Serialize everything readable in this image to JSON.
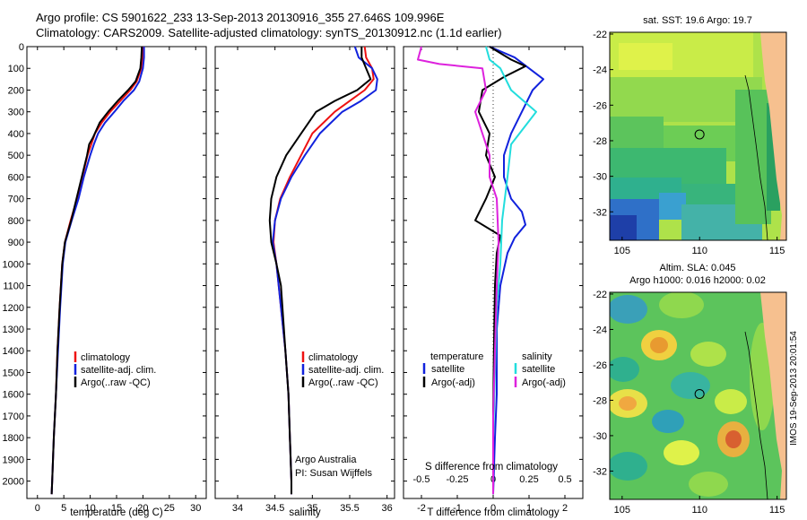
{
  "header": {
    "title_line1": "Argo profile: CS 5901622_233 13-Sep-2013 20130916_355 27.646S 109.996E",
    "title_line2": "Climatology: CARS2009. Satellite-adjusted climatology: synTS_20130912.nc (1.1d earlier)"
  },
  "colors": {
    "climatology": "#ee1111",
    "satellite": "#1122dd",
    "argo": "#000000",
    "satellite_cyan": "#22dddd",
    "argo_magenta": "#dd22dd",
    "land": "#f6c08f"
  },
  "chart_data": [
    {
      "id": "temperature",
      "type": "line",
      "xlabel": "temperature (deg C)",
      "ylabel": "",
      "xlim": [
        -2,
        32
      ],
      "ylim": [
        2080,
        0
      ],
      "xticks": [
        0,
        5,
        10,
        15,
        20,
        25,
        30
      ],
      "yticks": [
        0,
        100,
        200,
        300,
        400,
        500,
        600,
        700,
        800,
        900,
        1000,
        1100,
        1200,
        1300,
        1400,
        1500,
        1600,
        1700,
        1800,
        1900,
        2000
      ],
      "legend": [
        "climatology",
        "satellite-adj. clim.",
        "Argo(..raw -QC)"
      ],
      "series": [
        {
          "name": "climatology",
          "color_key": "climatology",
          "points": [
            [
              20,
              0
            ],
            [
              19.9,
              50
            ],
            [
              19.7,
              100
            ],
            [
              18.8,
              160
            ],
            [
              17.6,
              200
            ],
            [
              15.7,
              250
            ],
            [
              13.8,
              300
            ],
            [
              12.2,
              350
            ],
            [
              10.9,
              400
            ],
            [
              10.2,
              450
            ],
            [
              9.5,
              500
            ],
            [
              8.5,
              600
            ],
            [
              7.5,
              700
            ],
            [
              6.3,
              800
            ],
            [
              5.2,
              900
            ],
            [
              4.7,
              1000
            ],
            [
              4.2,
              1200
            ],
            [
              3.8,
              1400
            ],
            [
              3.5,
              1600
            ],
            [
              3.1,
              1800
            ],
            [
              2.8,
              2000
            ],
            [
              2.7,
              2060
            ]
          ]
        },
        {
          "name": "satellite-adj. clim.",
          "color_key": "satellite",
          "points": [
            [
              20.2,
              0
            ],
            [
              20.2,
              50
            ],
            [
              20,
              100
            ],
            [
              19.3,
              160
            ],
            [
              18.3,
              200
            ],
            [
              16.3,
              250
            ],
            [
              14.6,
              300
            ],
            [
              12.8,
              350
            ],
            [
              11.5,
              400
            ],
            [
              10.7,
              450
            ],
            [
              10,
              500
            ],
            [
              8.8,
              600
            ],
            [
              7.8,
              700
            ],
            [
              6.5,
              800
            ],
            [
              5.3,
              900
            ],
            [
              4.8,
              1000
            ],
            [
              4.3,
              1200
            ],
            [
              3.9,
              1400
            ],
            [
              3.5,
              1600
            ],
            [
              3.1,
              1800
            ],
            [
              2.8,
              2000
            ],
            [
              2.7,
              2060
            ]
          ]
        },
        {
          "name": "Argo(..raw -QC)",
          "color_key": "argo",
          "points": [
            [
              19.8,
              0
            ],
            [
              19.7,
              50
            ],
            [
              19.5,
              100
            ],
            [
              18.6,
              160
            ],
            [
              17.2,
              200
            ],
            [
              15.2,
              250
            ],
            [
              13.4,
              300
            ],
            [
              11.8,
              350
            ],
            [
              10.5,
              420
            ],
            [
              9.8,
              450
            ],
            [
              9.4,
              500
            ],
            [
              8.4,
              600
            ],
            [
              7.4,
              700
            ],
            [
              6.4,
              800
            ],
            [
              5.2,
              900
            ],
            [
              4.7,
              1000
            ],
            [
              4.2,
              1200
            ],
            [
              3.8,
              1400
            ],
            [
              3.5,
              1600
            ],
            [
              3.1,
              1800
            ],
            [
              2.8,
              2000
            ],
            [
              2.7,
              2060
            ]
          ]
        }
      ]
    },
    {
      "id": "salinity",
      "type": "line",
      "xlabel": "salinity",
      "ylabel": "",
      "xlim": [
        33.7,
        36.1
      ],
      "ylim": [
        2080,
        0
      ],
      "xticks": [
        34,
        34.5,
        35,
        35.5,
        36
      ],
      "xtick_labels": [
        "34",
        "34.5",
        "35",
        "35.5",
        "36"
      ],
      "legend": [
        "climatology",
        "satellite-adj. clim.",
        "Argo(..raw -QC)"
      ],
      "notes": [
        "Argo Australia",
        "PI: Susan Wijffels"
      ],
      "series": [
        {
          "name": "climatology",
          "color_key": "climatology",
          "points": [
            [
              35.7,
              0
            ],
            [
              35.72,
              50
            ],
            [
              35.8,
              100
            ],
            [
              35.82,
              150
            ],
            [
              35.7,
              200
            ],
            [
              35.5,
              250
            ],
            [
              35.3,
              300
            ],
            [
              35.0,
              400
            ],
            [
              34.85,
              500
            ],
            [
              34.7,
              600
            ],
            [
              34.57,
              700
            ],
            [
              34.5,
              800
            ],
            [
              34.48,
              900
            ],
            [
              34.52,
              1000
            ],
            [
              34.58,
              1200
            ],
            [
              34.64,
              1400
            ],
            [
              34.68,
              1600
            ],
            [
              34.7,
              1800
            ],
            [
              34.72,
              2000
            ],
            [
              34.72,
              2060
            ]
          ]
        },
        {
          "name": "satellite-adj. clim.",
          "color_key": "satellite",
          "points": [
            [
              35.57,
              0
            ],
            [
              35.62,
              50
            ],
            [
              35.8,
              100
            ],
            [
              35.87,
              150
            ],
            [
              35.85,
              200
            ],
            [
              35.65,
              250
            ],
            [
              35.4,
              300
            ],
            [
              35.1,
              400
            ],
            [
              34.9,
              500
            ],
            [
              34.72,
              600
            ],
            [
              34.58,
              700
            ],
            [
              34.5,
              800
            ],
            [
              34.47,
              900
            ],
            [
              34.52,
              1000
            ],
            [
              34.58,
              1200
            ],
            [
              34.64,
              1400
            ],
            [
              34.68,
              1600
            ],
            [
              34.7,
              1800
            ],
            [
              34.72,
              2000
            ],
            [
              34.72,
              2060
            ]
          ]
        },
        {
          "name": "Argo(..raw -QC)",
          "color_key": "argo",
          "points": [
            [
              35.66,
              0
            ],
            [
              35.66,
              50
            ],
            [
              35.72,
              100
            ],
            [
              35.78,
              150
            ],
            [
              35.6,
              200
            ],
            [
              35.3,
              250
            ],
            [
              35.05,
              300
            ],
            [
              34.85,
              400
            ],
            [
              34.65,
              500
            ],
            [
              34.52,
              600
            ],
            [
              34.45,
              700
            ],
            [
              34.43,
              800
            ],
            [
              34.45,
              900
            ],
            [
              34.52,
              1000
            ],
            [
              34.58,
              1100
            ],
            [
              34.6,
              1200
            ],
            [
              34.64,
              1400
            ],
            [
              34.68,
              1600
            ],
            [
              34.7,
              1800
            ],
            [
              34.72,
              2000
            ],
            [
              34.72,
              2060
            ]
          ]
        }
      ]
    },
    {
      "id": "difference",
      "type": "line",
      "xlabel": "T difference from climatology",
      "xlabel_top": "S difference from climatology",
      "ylabel": "",
      "xlim": [
        -2.5,
        2.5
      ],
      "ylim": [
        2080,
        0
      ],
      "xticks": [
        -2,
        -1,
        0,
        1,
        2
      ],
      "top_ticks": [
        -0.5,
        -0.25,
        0,
        0.25,
        0.5
      ],
      "top_tick_labels": [
        "-0.5",
        "-0.25",
        "0",
        "0.25",
        "0.5"
      ],
      "legend_temperature_title": "temperature",
      "legend_salinity_title": "salinity",
      "legend_temperature": [
        "satellite",
        "Argo(-adj)"
      ],
      "legend_salinity": [
        "satellite",
        "Argo(-adj)"
      ],
      "series": [
        {
          "name": "satellite",
          "group": "temperature",
          "color_key": "satellite",
          "points": [
            [
              -0.1,
              0
            ],
            [
              0.6,
              50
            ],
            [
              1.0,
              100
            ],
            [
              1.4,
              150
            ],
            [
              1.1,
              200
            ],
            [
              0.8,
              300
            ],
            [
              0.5,
              400
            ],
            [
              0.3,
              500
            ],
            [
              0.3,
              600
            ],
            [
              0.5,
              700
            ],
            [
              0.8,
              760
            ],
            [
              0.9,
              820
            ],
            [
              0.6,
              880
            ],
            [
              0.4,
              950
            ],
            [
              0.2,
              1100
            ],
            [
              0.1,
              1300
            ],
            [
              0.1,
              1600
            ],
            [
              0.05,
              1800
            ],
            [
              0,
              2060
            ]
          ]
        },
        {
          "name": "Argo(-adj)",
          "group": "temperature",
          "color_key": "argo",
          "points": [
            [
              -0.1,
              0
            ],
            [
              0.5,
              60
            ],
            [
              0.9,
              90
            ],
            [
              0.3,
              140
            ],
            [
              -0.3,
              200
            ],
            [
              -0.4,
              300
            ],
            [
              -0.1,
              400
            ],
            [
              -0.2,
              500
            ],
            [
              0.05,
              600
            ],
            [
              -0.2,
              700
            ],
            [
              -0.5,
              800
            ],
            [
              0.2,
              870
            ],
            [
              0.1,
              950
            ],
            [
              0.05,
              1100
            ],
            [
              0.02,
              1400
            ],
            [
              0,
              1700
            ],
            [
              0,
              2060
            ]
          ]
        },
        {
          "name": "satellite",
          "group": "salinity",
          "color_key": "satellite_cyan",
          "points": [
            [
              -0.2,
              0
            ],
            [
              -0.1,
              60
            ],
            [
              0.2,
              100
            ],
            [
              0.5,
              200
            ],
            [
              1.2,
              300
            ],
            [
              0.5,
              450
            ],
            [
              0.4,
              600
            ],
            [
              0.25,
              800
            ],
            [
              0.2,
              1000
            ],
            [
              0.1,
              1200
            ],
            [
              0.05,
              1500
            ],
            [
              0,
              1800
            ],
            [
              0,
              2060
            ]
          ]
        },
        {
          "name": "Argo(-adj)",
          "group": "salinity",
          "color_key": "argo_magenta",
          "points": [
            [
              -2.0,
              0
            ],
            [
              -2.1,
              60
            ],
            [
              -1.5,
              80
            ],
            [
              -0.3,
              100
            ],
            [
              -0.2,
              200
            ],
            [
              -0.5,
              300
            ],
            [
              -0.3,
              400
            ],
            [
              -0.1,
              500
            ],
            [
              -0.1,
              600
            ],
            [
              0.1,
              700
            ],
            [
              0.15,
              900
            ],
            [
              0.1,
              1100
            ],
            [
              0.05,
              1400
            ],
            [
              0,
              1700
            ],
            [
              0,
              2060
            ]
          ]
        }
      ]
    },
    {
      "id": "sst-map",
      "type": "heatmap",
      "title": "sat. SST: 19.6 Argo: 19.7",
      "xlim": [
        104.2,
        115.6
      ],
      "ylim": [
        -33.6,
        -21.9
      ],
      "xticks": [
        105,
        110,
        115
      ],
      "yticks": [
        -22,
        -24,
        -26,
        -28,
        -30,
        -32
      ],
      "argo_position": [
        109.996,
        -27.646
      ]
    },
    {
      "id": "sla-map",
      "type": "heatmap",
      "title_line1": "Altim. SLA: 0.045",
      "title_line2": "Argo h1000: 0.016 h2000: 0.02",
      "xlim": [
        104.2,
        115.6
      ],
      "ylim": [
        -33.6,
        -21.9
      ],
      "xticks": [
        105,
        110,
        115
      ],
      "yticks": [
        -22,
        -24,
        -26,
        -28,
        -30,
        -32
      ],
      "argo_position": [
        109.996,
        -27.646
      ]
    }
  ],
  "credit": "IMOS 19-Sep-2013 20:01:54"
}
